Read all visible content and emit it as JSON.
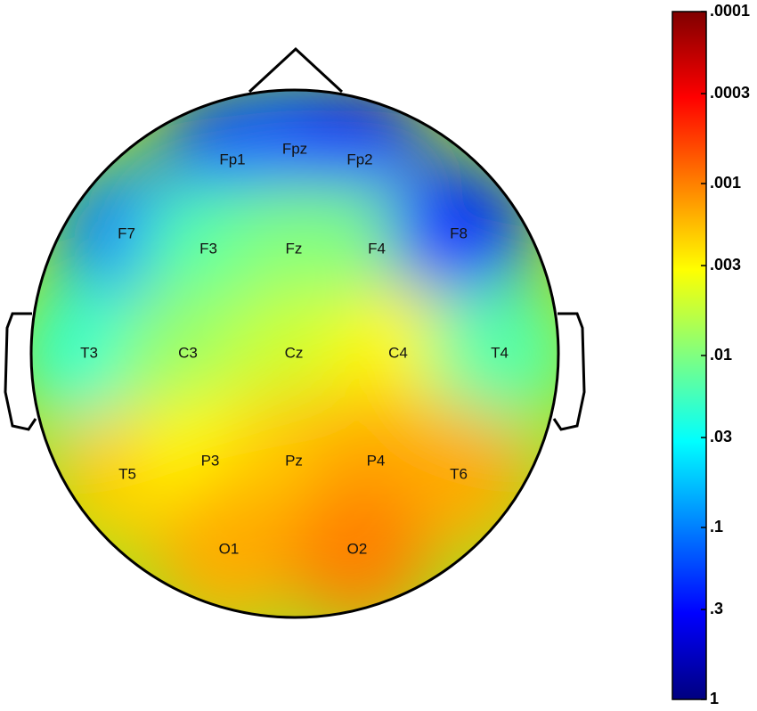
{
  "chart_data": {
    "type": "topomap",
    "electrodes": [
      "Fp1",
      "Fpz",
      "Fp2",
      "F7",
      "F3",
      "Fz",
      "F4",
      "F8",
      "T3",
      "C3",
      "Cz",
      "C4",
      "T4",
      "T5",
      "P3",
      "Pz",
      "P4",
      "T6",
      "O1",
      "O2"
    ],
    "values": [
      0.2,
      0.15,
      0.3,
      0.1,
      0.015,
      0.01,
      0.01,
      0.2,
      0.02,
      0.008,
      0.005,
      0.003,
      0.015,
      0.002,
      0.003,
      0.002,
      0.0015,
      0.0015,
      0.0015,
      0.001
    ],
    "colormap": "jet",
    "log_scale": true,
    "clim": [
      0.0001,
      1
    ],
    "cticks": [
      {
        "value": 0.0001,
        "label": ".0001"
      },
      {
        "value": 0.0003,
        "label": ".0003"
      },
      {
        "value": 0.001,
        "label": ".001"
      },
      {
        "value": 0.003,
        "label": ".003"
      },
      {
        "value": 0.01,
        "label": ".01"
      },
      {
        "value": 0.03,
        "label": ".03"
      },
      {
        "value": 0.1,
        "label": ".1"
      },
      {
        "value": 0.3,
        "label": ".3"
      },
      1
    ]
  }
}
